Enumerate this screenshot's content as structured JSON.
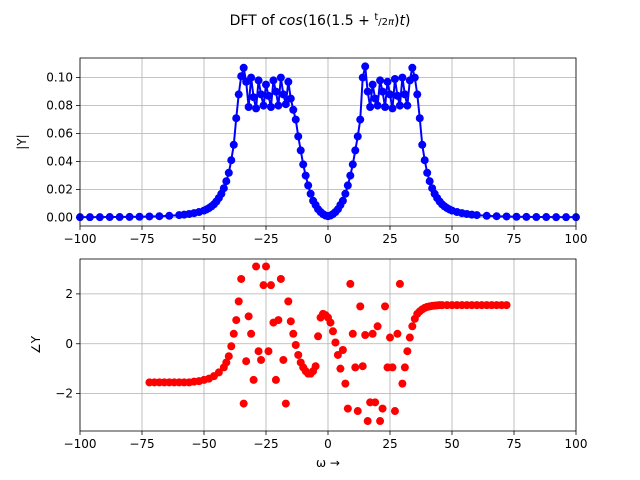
{
  "figure": {
    "title": "DFT of cos(16(1.5 + t/2π)t)"
  },
  "chart_data": [
    {
      "type": "line",
      "ylabel": "|Y|",
      "xlabel": "",
      "xlim": [
        -100,
        100
      ],
      "ylim": [
        -0.006,
        0.114
      ],
      "xticks": [
        -100,
        -75,
        -50,
        -25,
        0,
        25,
        50,
        75,
        100
      ],
      "yticks": [
        0.0,
        0.02,
        0.04,
        0.06,
        0.08,
        0.1
      ],
      "ytick_labels": [
        "0.00",
        "0.02",
        "0.04",
        "0.06",
        "0.08",
        "0.10"
      ],
      "grid": true,
      "color": "#0000ff",
      "marker": "circle",
      "series": [
        {
          "x": [
            -100,
            -96,
            -92,
            -88,
            -84,
            -80,
            -76,
            -72,
            -68,
            -64,
            -60,
            -58,
            -56,
            -54,
            -52,
            -50,
            -49,
            -48,
            -47,
            -46,
            -45,
            -44,
            -43,
            -42,
            -41,
            -40,
            -39,
            -38,
            -37,
            -36,
            -35,
            -34,
            -33,
            -32,
            -31,
            -30,
            -29,
            -28,
            -27,
            -26,
            -25,
            -24,
            -23,
            -22,
            -21,
            -20,
            -19,
            -18,
            -17,
            -16,
            -15,
            -14,
            -13,
            -12,
            -11,
            -10,
            -9,
            -8,
            -7,
            -6,
            -5,
            -4,
            -3,
            -2,
            -1,
            0,
            1,
            2,
            3,
            4,
            5,
            6,
            7,
            8,
            9,
            10,
            11,
            12,
            13,
            14,
            15,
            16,
            17,
            18,
            19,
            20,
            21,
            22,
            23,
            24,
            25,
            26,
            27,
            28,
            29,
            30,
            31,
            32,
            33,
            34,
            35,
            36,
            37,
            38,
            39,
            40,
            41,
            42,
            43,
            44,
            45,
            46,
            47,
            48,
            49,
            50,
            52,
            54,
            56,
            58,
            60,
            64,
            68,
            72,
            76,
            80,
            84,
            88,
            92,
            96,
            100
          ],
          "y": [
            0.0003,
            0.0003,
            0.0003,
            0.0004,
            0.0004,
            0.0005,
            0.0006,
            0.0008,
            0.001,
            0.0013,
            0.0018,
            0.0021,
            0.0026,
            0.0032,
            0.004,
            0.005,
            0.0058,
            0.0068,
            0.008,
            0.0095,
            0.0115,
            0.014,
            0.017,
            0.021,
            0.026,
            0.032,
            0.041,
            0.052,
            0.071,
            0.088,
            0.101,
            0.107,
            0.097,
            0.079,
            0.1,
            0.086,
            0.078,
            0.098,
            0.088,
            0.08,
            0.095,
            0.087,
            0.079,
            0.098,
            0.09,
            0.08,
            0.1,
            0.088,
            0.081,
            0.097,
            0.085,
            0.077,
            0.07,
            0.058,
            0.048,
            0.038,
            0.03,
            0.023,
            0.017,
            0.012,
            0.009,
            0.006,
            0.004,
            0.0025,
            0.0015,
            0.001,
            0.0015,
            0.0025,
            0.004,
            0.006,
            0.009,
            0.012,
            0.017,
            0.023,
            0.03,
            0.038,
            0.048,
            0.058,
            0.07,
            0.1,
            0.108,
            0.09,
            0.079,
            0.095,
            0.085,
            0.08,
            0.098,
            0.09,
            0.079,
            0.097,
            0.088,
            0.078,
            0.099,
            0.087,
            0.08,
            0.1,
            0.088,
            0.08,
            0.098,
            0.107,
            0.1,
            0.088,
            0.071,
            0.052,
            0.041,
            0.032,
            0.026,
            0.021,
            0.017,
            0.014,
            0.0115,
            0.0095,
            0.008,
            0.0068,
            0.0058,
            0.005,
            0.004,
            0.0032,
            0.0026,
            0.0021,
            0.0018,
            0.0013,
            0.001,
            0.0008,
            0.0006,
            0.0005,
            0.0004,
            0.0004,
            0.0003,
            0.0003,
            0.0003
          ]
        }
      ]
    },
    {
      "type": "scatter",
      "ylabel": "∠Y",
      "xlabel": "ω →",
      "xlim": [
        -100,
        100
      ],
      "ylim": [
        -3.5,
        3.4
      ],
      "xticks": [
        -100,
        -75,
        -50,
        -25,
        0,
        25,
        50,
        75,
        100
      ],
      "yticks": [
        -2,
        0,
        2
      ],
      "ytick_labels": [
        "−2",
        "0",
        "2"
      ],
      "grid": true,
      "color": "#ff0000",
      "marker": "circle",
      "series": [
        {
          "x": [
            -72,
            -70,
            -68,
            -66,
            -64,
            -62,
            -60,
            -58,
            -56,
            -54,
            -52,
            -50,
            -48,
            -46,
            -44,
            -42,
            -41,
            -40,
            -39,
            -38,
            -37,
            -36,
            -35,
            -34,
            -33,
            -32,
            -31,
            -30,
            -29,
            -28,
            -27,
            -26,
            -25,
            -24,
            -23,
            -22,
            -21,
            -20,
            -19,
            -18,
            -17,
            -16,
            -15,
            -14,
            -13,
            -12,
            -11,
            -10,
            -9,
            -8,
            -7,
            -6,
            -5,
            -4,
            -3,
            -2,
            -1,
            0,
            1,
            2,
            3,
            4,
            5,
            6,
            7,
            8,
            9,
            10,
            11,
            12,
            13,
            14,
            15,
            16,
            17,
            18,
            19,
            20,
            21,
            22,
            23,
            24,
            25,
            26,
            27,
            28,
            29,
            30,
            31,
            32,
            33,
            34,
            35,
            36,
            37,
            38,
            39,
            40,
            41,
            42,
            43,
            44,
            45,
            46,
            48,
            50,
            52,
            54,
            56,
            58,
            60,
            62,
            64,
            66,
            68,
            70,
            72
          ],
          "y": [
            -1.55,
            -1.55,
            -1.55,
            -1.55,
            -1.55,
            -1.55,
            -1.55,
            -1.55,
            -1.55,
            -1.52,
            -1.5,
            -1.45,
            -1.4,
            -1.3,
            -1.15,
            -0.95,
            -0.75,
            -0.5,
            -0.1,
            0.4,
            0.95,
            1.7,
            2.6,
            -2.4,
            -0.7,
            1.1,
            0.4,
            -1.45,
            3.1,
            -0.3,
            -0.65,
            2.35,
            3.1,
            -0.3,
            2.35,
            0.85,
            -1.45,
            0.95,
            2.6,
            -0.65,
            -2.4,
            1.7,
            0.9,
            0.4,
            -0.05,
            -0.45,
            -0.75,
            -0.95,
            -1.1,
            -1.2,
            -1.2,
            -1.1,
            -0.9,
            0.3,
            1.05,
            1.2,
            1.15,
            1.05,
            0.85,
            0.5,
            0.05,
            -0.45,
            -1.0,
            -0.25,
            -1.6,
            -2.6,
            2.4,
            0.4,
            -0.95,
            -2.7,
            1.5,
            -0.9,
            0.35,
            -3.1,
            -2.35,
            0.4,
            -2.35,
            0.7,
            -3.1,
            -2.6,
            1.5,
            -0.95,
            0.25,
            -0.95,
            -2.7,
            0.4,
            2.4,
            -1.6,
            -0.95,
            -0.3,
            0.25,
            0.7,
            1.0,
            1.2,
            1.3,
            1.38,
            1.44,
            1.48,
            1.5,
            1.52,
            1.53,
            1.54,
            1.55,
            1.55,
            1.55,
            1.55,
            1.55,
            1.55,
            1.55,
            1.55,
            1.55,
            1.55,
            1.55,
            1.55,
            1.55,
            1.55,
            1.55
          ]
        }
      ]
    }
  ]
}
